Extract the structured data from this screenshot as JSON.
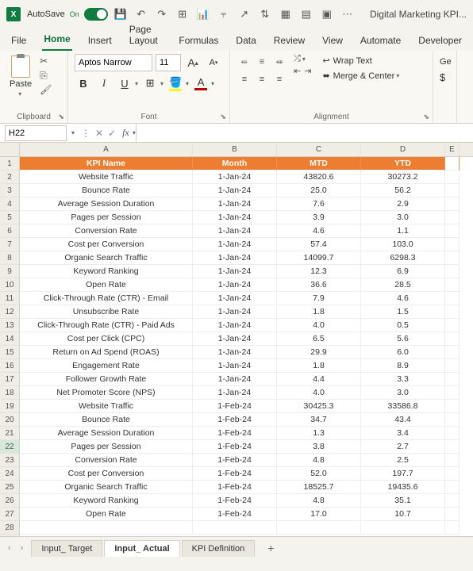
{
  "titlebar": {
    "autosave_label": "AutoSave",
    "autosave_state": "On",
    "doc_title": "Digital Marketing KPI..."
  },
  "ribbon": {
    "tabs": [
      "File",
      "Home",
      "Insert",
      "Page Layout",
      "Formulas",
      "Data",
      "Review",
      "View",
      "Automate",
      "Developer"
    ],
    "active_tab": "Home",
    "clipboard": {
      "paste_label": "Paste",
      "group_label": "Clipboard"
    },
    "font": {
      "name": "Aptos Narrow",
      "size": "11",
      "group_label": "Font",
      "increase": "A",
      "decrease": "A",
      "bold": "B",
      "italic": "I",
      "underline": "U",
      "fill_color": "#ffff00",
      "font_color": "#c00000"
    },
    "alignment": {
      "group_label": "Alignment",
      "wrap_label": "Wrap Text",
      "merge_label": "Merge & Center"
    },
    "number": {
      "general": "Ge",
      "currency": "$"
    }
  },
  "namebox": {
    "ref": "H22",
    "fx": "fx"
  },
  "grid": {
    "col_headers": [
      "A",
      "B",
      "C",
      "D",
      "E"
    ],
    "col_widths": {
      "A": 218,
      "B": 106,
      "C": 106,
      "D": 106,
      "E": 18
    },
    "header_bg": "#ed7d31",
    "header_fg": "#ffffff",
    "selection_color": "#107c41",
    "selected_row": 22,
    "row_count": 28,
    "headers": [
      "KPI Name",
      "Month",
      "MTD",
      "YTD"
    ],
    "rows": [
      [
        "Website Traffic",
        "1-Jan-24",
        "43820.6",
        "30273.2"
      ],
      [
        "Bounce Rate",
        "1-Jan-24",
        "25.0",
        "56.2"
      ],
      [
        "Average Session Duration",
        "1-Jan-24",
        "7.6",
        "2.9"
      ],
      [
        "Pages per Session",
        "1-Jan-24",
        "3.9",
        "3.0"
      ],
      [
        "Conversion Rate",
        "1-Jan-24",
        "4.6",
        "1.1"
      ],
      [
        "Cost per Conversion",
        "1-Jan-24",
        "57.4",
        "103.0"
      ],
      [
        "Organic Search Traffic",
        "1-Jan-24",
        "14099.7",
        "6298.3"
      ],
      [
        "Keyword Ranking",
        "1-Jan-24",
        "12.3",
        "6.9"
      ],
      [
        "Open Rate",
        "1-Jan-24",
        "36.6",
        "28.5"
      ],
      [
        "Click-Through Rate (CTR) - Email",
        "1-Jan-24",
        "7.9",
        "4.6"
      ],
      [
        "Unsubscribe Rate",
        "1-Jan-24",
        "1.8",
        "1.5"
      ],
      [
        "Click-Through Rate (CTR) - Paid Ads",
        "1-Jan-24",
        "4.0",
        "0.5"
      ],
      [
        "Cost per Click (CPC)",
        "1-Jan-24",
        "6.5",
        "5.6"
      ],
      [
        "Return on Ad Spend (ROAS)",
        "1-Jan-24",
        "29.9",
        "6.0"
      ],
      [
        "Engagement Rate",
        "1-Jan-24",
        "1.8",
        "8.9"
      ],
      [
        "Follower Growth Rate",
        "1-Jan-24",
        "4.4",
        "3.3"
      ],
      [
        "Net Promoter Score (NPS)",
        "1-Jan-24",
        "4.0",
        "3.0"
      ],
      [
        "Website Traffic",
        "1-Feb-24",
        "30425.3",
        "33586.8"
      ],
      [
        "Bounce Rate",
        "1-Feb-24",
        "34.7",
        "43.4"
      ],
      [
        "Average Session Duration",
        "1-Feb-24",
        "1.3",
        "3.4"
      ],
      [
        "Pages per Session",
        "1-Feb-24",
        "3.8",
        "2.7"
      ],
      [
        "Conversion Rate",
        "1-Feb-24",
        "4.8",
        "2.5"
      ],
      [
        "Cost per Conversion",
        "1-Feb-24",
        "52.0",
        "197.7"
      ],
      [
        "Organic Search Traffic",
        "1-Feb-24",
        "18525.7",
        "19435.6"
      ],
      [
        "Keyword Ranking",
        "1-Feb-24",
        "4.8",
        "35.1"
      ],
      [
        "Open Rate",
        "1-Feb-24",
        "17.0",
        "10.7"
      ]
    ]
  },
  "sheets": {
    "tabs": [
      "Input_ Target",
      "Input_ Actual",
      "KPI Definition"
    ],
    "active": "Input_ Actual",
    "add": "+"
  }
}
